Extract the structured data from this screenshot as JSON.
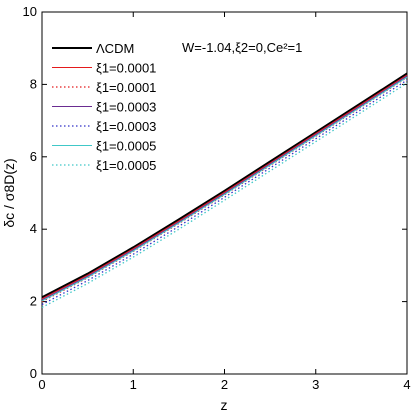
{
  "chart_data": {
    "type": "line",
    "xlabel": "z",
    "ylabel": "δc / σ8D(z)",
    "xlim": [
      0,
      4
    ],
    "ylim": [
      0,
      10
    ],
    "xticks": [
      0,
      1,
      2,
      3,
      4
    ],
    "yticks": [
      0,
      2,
      4,
      6,
      8,
      10
    ],
    "grid": false,
    "legend_position": "top-left",
    "annotation": "W=-1.04,ξ2=0,Ce²=1",
    "x": [
      0,
      0.5,
      1,
      1.5,
      2,
      2.5,
      3,
      3.5,
      4
    ],
    "series": [
      {
        "name": "ΛCDM",
        "color": "#000000",
        "style": "solid",
        "width": 2,
        "values": [
          2.12,
          2.77,
          3.5,
          4.27,
          5.06,
          5.87,
          6.68,
          7.49,
          8.3
        ]
      },
      {
        "name": "ξ1=0.0001",
        "color": "#e41a1c",
        "style": "solid",
        "width": 1,
        "values": [
          2.08,
          2.73,
          3.46,
          4.23,
          5.02,
          5.83,
          6.64,
          7.45,
          8.26
        ]
      },
      {
        "name": "ξ1=0.0001",
        "color": "#e41a1c",
        "style": "dotted",
        "width": 1.3,
        "values": [
          2.0,
          2.66,
          3.39,
          4.16,
          4.95,
          5.76,
          6.57,
          7.38,
          8.19
        ]
      },
      {
        "name": "ξ1=0.0003",
        "color": "#6a2c91",
        "style": "solid",
        "width": 1,
        "values": [
          2.05,
          2.7,
          3.43,
          4.2,
          4.99,
          5.8,
          6.61,
          7.42,
          8.23
        ]
      },
      {
        "name": "ξ1=0.0003",
        "color": "#3030c8",
        "style": "dotted",
        "width": 1.3,
        "values": [
          1.92,
          2.58,
          3.31,
          4.08,
          4.88,
          5.69,
          6.5,
          7.31,
          8.12
        ]
      },
      {
        "name": "ξ1=0.0005",
        "color": "#40c8c8",
        "style": "solid",
        "width": 1,
        "values": [
          2.02,
          2.67,
          3.4,
          4.17,
          4.96,
          5.77,
          6.58,
          7.39,
          8.2
        ]
      },
      {
        "name": "ξ1=0.0005",
        "color": "#40c8c8",
        "style": "dotted",
        "width": 1.3,
        "values": [
          1.84,
          2.5,
          3.23,
          4.0,
          4.8,
          5.61,
          6.42,
          7.23,
          8.04
        ]
      }
    ]
  }
}
